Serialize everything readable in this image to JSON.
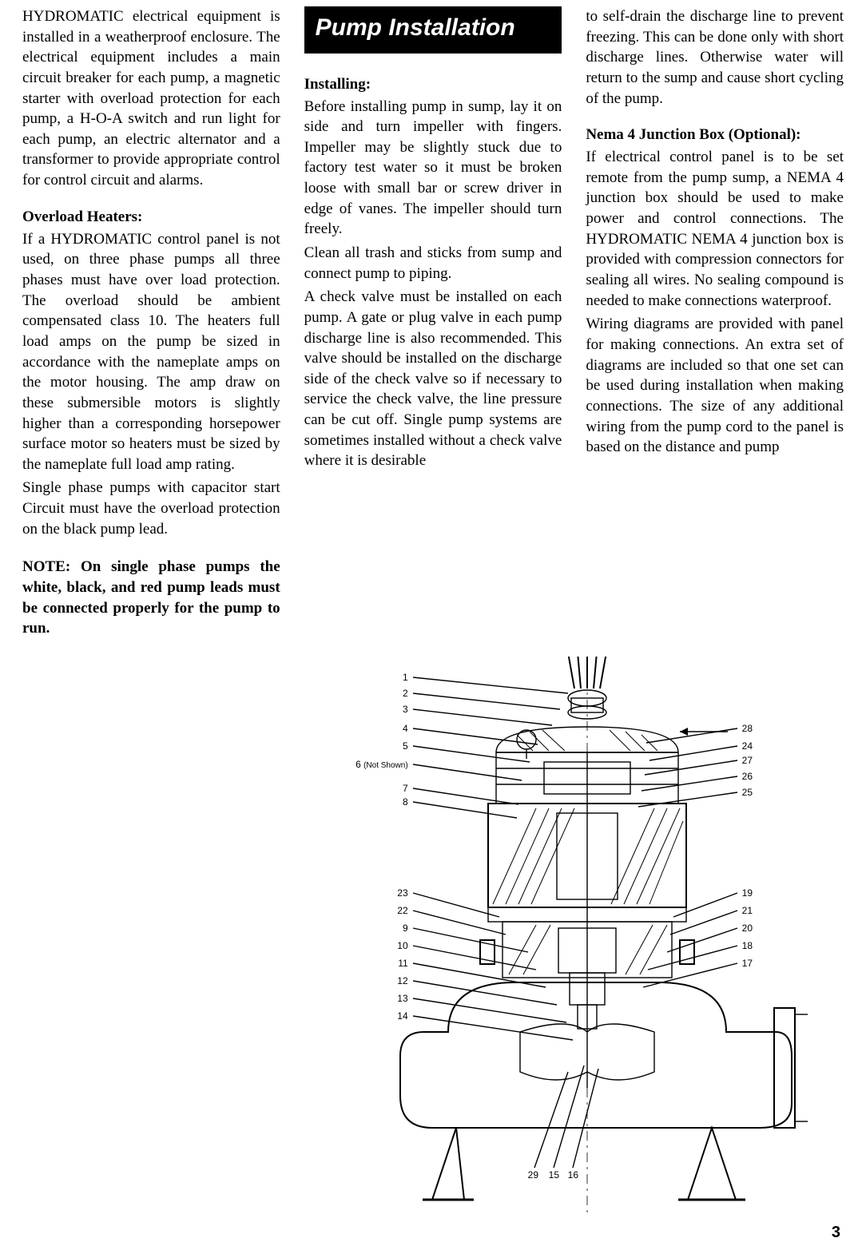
{
  "col1": {
    "p1": "HYDROMATIC electrical equipment is installed in a weatherproof enclosure. The electrical equipment includes a main circuit breaker for each pump, a magnetic starter with overload protection for each pump, a H-O-A switch and run light for each pump, an electric alternator and a transformer to provide appropriate control for control circuit and alarms.",
    "h1": "Overload Heaters:",
    "p2": "If a HYDROMATIC control panel is not used, on three phase pumps all three phases must have over load protection.  The overload should be ambient compensated class 10.  The heaters  full load amps on the pump be sized in accordance with the nameplate amps on the motor housing. The amp draw on these submersible motors is slightly higher than a corresponding horsepower surface motor so heaters must be sized by the nameplate full load amp rating.",
    "p3": "Single phase pumps with capacitor start Circuit must have the overload protection on the black pump lead.",
    "note": "NOTE:  On single phase pumps the white, black, and red pump leads must be connected properly for the pump to run."
  },
  "col2": {
    "section": "Pump Installation",
    "h1": "Installing:",
    "p1": "Before installing pump in sump, lay it on side and turn impeller with fingers. Impeller may be slightly stuck due to factory test water so it must be broken loose with small bar or screw driver in edge of vanes. The impeller should turn freely.",
    "p2": "Clean all trash and sticks from sump and connect pump to piping.",
    "p3": "A check valve must be installed on each pump. A gate or plug valve in each pump discharge line is also recommended. This valve should be installed on the discharge side of the check valve so if necessary to service the check valve, the line pressure can be cut off. Single pump systems are sometimes installed without a check valve where it is desirable"
  },
  "col3": {
    "p1": "to self-drain the discharge line to prevent freezing. This can be done only with short discharge lines. Otherwise water will return to the sump and cause short cycling of the pump.",
    "h1": "Nema 4 Junction Box (Optional):",
    "p2": "If electrical control panel is to be set remote from the pump sump, a NEMA 4 junction box should be used to make power and control connections. The HYDROMATIC NEMA 4 junction box is provided with compression connectors for sealing all wires. No sealing compound is needed to make connections waterproof.",
    "p3": "Wiring diagrams are provided with panel for making connections. An extra set of diagrams are included so that one set can be used during installation when making connections. The size of any additional wiring from the pump cord to the panel is based on the distance and pump"
  },
  "figure": {
    "not_shown": "(Not Shown)",
    "left_labels": [
      "1",
      "2",
      "3",
      "4",
      "5",
      "6",
      "7",
      "8",
      "23",
      "22",
      "9",
      "10",
      "11",
      "12",
      "13",
      "14"
    ],
    "right_labels": [
      "28",
      "24",
      "27",
      "26",
      "25",
      "19",
      "21",
      "20",
      "18",
      "17"
    ],
    "bottom_labels": [
      "29",
      "15",
      "16"
    ],
    "left_y": [
      26,
      46,
      66,
      90,
      112,
      135,
      165,
      182,
      296,
      318,
      340,
      362,
      384,
      406,
      428,
      450
    ],
    "right_y": [
      90,
      112,
      130,
      150,
      170,
      296,
      318,
      340,
      362,
      384
    ],
    "colors": {
      "line": "#000000",
      "thin": "#666666",
      "bg": "#ffffff"
    }
  },
  "page_number": "3"
}
